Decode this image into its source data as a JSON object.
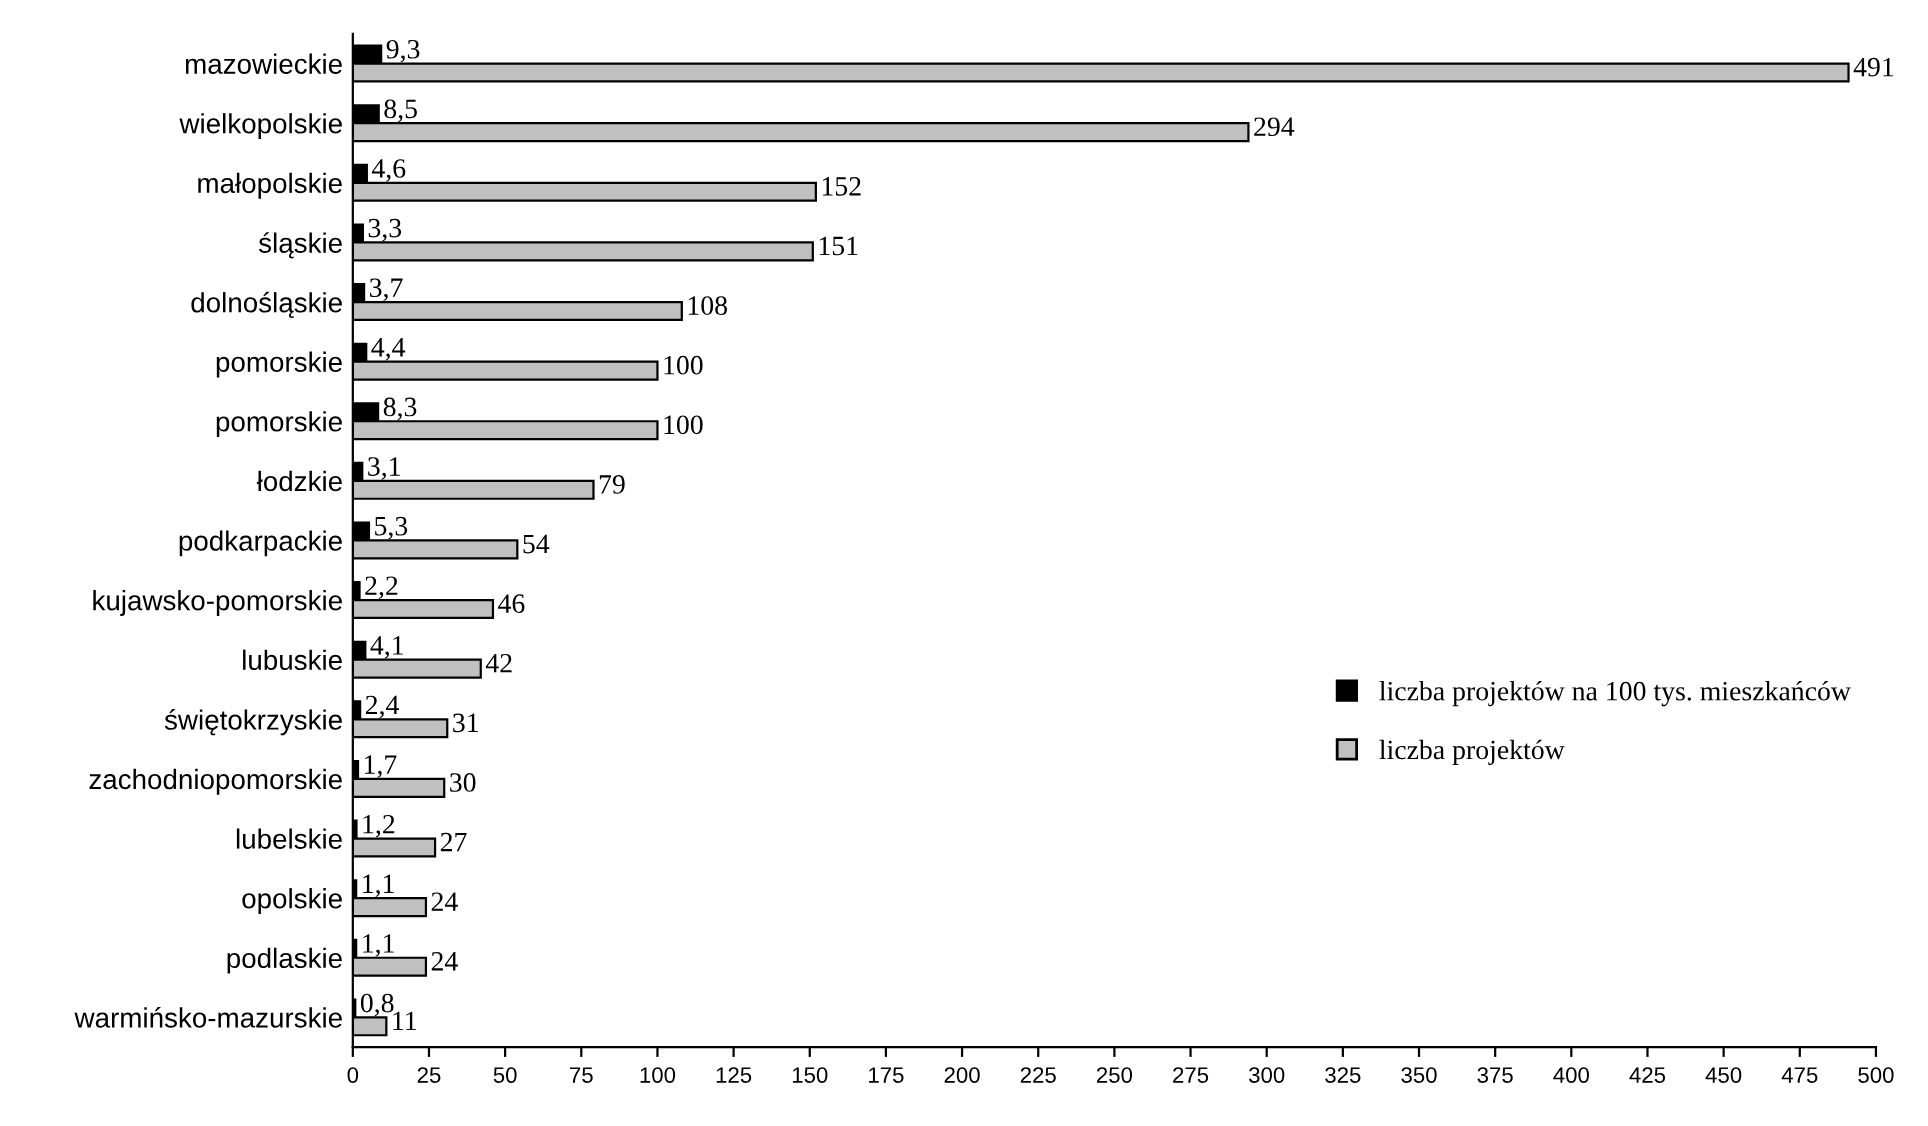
{
  "chart_data": {
    "type": "bar",
    "orientation": "horizontal",
    "categories": [
      "mazowieckie",
      "wielkopolskie",
      "małopolskie",
      "śląskie",
      "dolnośląskie",
      "pomorskie",
      "pomorskie",
      "łodzkie",
      "podkarpackie",
      "kujawsko-pomorskie",
      "lubuskie",
      "świętokrzyskie",
      "zachodniopomorskie",
      "lubelskie",
      "opolskie",
      "podlaskie",
      "warmińsko-mazurskie"
    ],
    "series": [
      {
        "name": "liczba projektów na 100 tys. mieszkańców",
        "color": "#000000",
        "values": [
          9.3,
          8.5,
          4.6,
          3.3,
          3.7,
          4.4,
          8.3,
          3.1,
          5.3,
          2.2,
          4.1,
          2.4,
          1.7,
          1.2,
          1.1,
          1.1,
          0.8
        ],
        "value_labels": [
          "9,3",
          "8,5",
          "4,6",
          "3,3",
          "3,7",
          "4,4",
          "8,3",
          "3,1",
          "5,3",
          "2,2",
          "4,1",
          "2,4",
          "1,7",
          "1,2",
          "1,1",
          "1,1",
          "0,8"
        ]
      },
      {
        "name": "liczba projektów",
        "color": "#c0c0c0",
        "values": [
          491,
          294,
          152,
          151,
          108,
          100,
          100,
          79,
          54,
          46,
          42,
          31,
          30,
          27,
          24,
          24,
          11
        ],
        "value_labels": [
          "491",
          "294",
          "152",
          "151",
          "108",
          "100",
          "100",
          "79",
          "54",
          "46",
          "42",
          "31",
          "30",
          "27",
          "24",
          "24",
          "11"
        ]
      }
    ],
    "xlim": [
      0,
      500
    ],
    "xticks": [
      0,
      25,
      50,
      75,
      100,
      125,
      150,
      175,
      200,
      225,
      250,
      275,
      300,
      325,
      350,
      375,
      400,
      425,
      450,
      475,
      500
    ],
    "legend": "right",
    "grid": false
  }
}
